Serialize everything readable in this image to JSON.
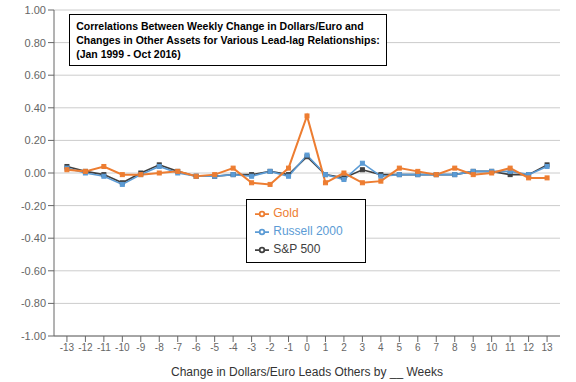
{
  "chart_data": {
    "type": "line",
    "title": "Correlations Between Weekly Change in Dollars/Euro and\nChanges in Other Assets for Various Lead-lag Relationships:\n(Jan 1999 - Oct 2016)",
    "x_label": "Change in Dollars/Euro Leads Others by __ Weeks",
    "x": [
      -13,
      -12,
      -11,
      -10,
      -9,
      -8,
      -7,
      -6,
      -5,
      -4,
      -3,
      -2,
      -1,
      0,
      1,
      2,
      3,
      4,
      5,
      6,
      7,
      8,
      9,
      10,
      11,
      12,
      13
    ],
    "series": [
      {
        "name": "S&P 500",
        "color": "#404040",
        "marker": "square",
        "values": [
          0.04,
          0.01,
          -0.01,
          -0.06,
          0.0,
          0.05,
          0.01,
          -0.02,
          -0.02,
          -0.01,
          -0.01,
          0.01,
          -0.01,
          0.1,
          -0.01,
          -0.03,
          0.02,
          -0.01,
          -0.01,
          -0.01,
          -0.01,
          -0.01,
          0.01,
          0.01,
          -0.01,
          -0.01,
          0.05
        ]
      },
      {
        "name": "Russell 2000",
        "color": "#5b9bd5",
        "marker": "square",
        "values": [
          0.03,
          0.0,
          -0.02,
          -0.07,
          -0.01,
          0.04,
          0.0,
          -0.02,
          -0.02,
          -0.01,
          -0.02,
          0.01,
          -0.02,
          0.11,
          -0.01,
          -0.04,
          0.06,
          -0.02,
          -0.01,
          -0.01,
          -0.01,
          -0.01,
          0.01,
          0.01,
          0.01,
          -0.01,
          0.04
        ]
      },
      {
        "name": "Gold",
        "color": "#ed7d31",
        "marker": "square",
        "values": [
          0.02,
          0.01,
          0.04,
          -0.01,
          -0.01,
          0.0,
          0.01,
          -0.02,
          -0.01,
          0.03,
          -0.06,
          -0.07,
          0.03,
          0.35,
          -0.06,
          0.0,
          -0.06,
          -0.05,
          0.03,
          0.01,
          -0.01,
          0.03,
          -0.01,
          0.0,
          0.03,
          -0.03,
          -0.03
        ]
      }
    ],
    "xlim": [
      -13.7,
      13.7
    ],
    "xticks": [
      -13,
      -12,
      -11,
      -10,
      -9,
      -8,
      -7,
      -6,
      -5,
      -4,
      -3,
      -2,
      -1,
      0,
      1,
      2,
      3,
      4,
      5,
      6,
      7,
      8,
      9,
      10,
      11,
      12,
      13
    ],
    "ylim": [
      -1.0,
      1.0
    ],
    "yticks": [
      {
        "value": -1.0,
        "label": "-1.00"
      },
      {
        "value": -0.8,
        "label": "-0.80"
      },
      {
        "value": -0.6,
        "label": "-0.60"
      },
      {
        "value": -0.4,
        "label": "-0.40"
      },
      {
        "value": -0.2,
        "label": "-0.20"
      },
      {
        "value": 0.0,
        "label": "0.00"
      },
      {
        "value": 0.2,
        "label": "0.20"
      },
      {
        "value": 0.4,
        "label": "0.40"
      },
      {
        "value": 0.6,
        "label": "0.60"
      },
      {
        "value": 0.8,
        "label": "0.80"
      },
      {
        "value": 1.0,
        "label": "1.00"
      }
    ],
    "grid": true,
    "legend": "center"
  }
}
